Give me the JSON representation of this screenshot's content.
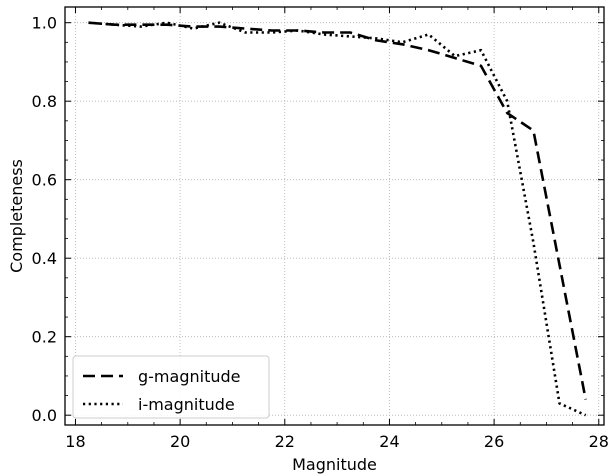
{
  "chart_data": {
    "type": "line",
    "title": "",
    "xlabel": "Magnitude",
    "ylabel": "Completeness",
    "xlim": [
      17.8,
      28.1
    ],
    "ylim": [
      -0.025,
      1.04
    ],
    "xticks": [
      18,
      20,
      22,
      24,
      26,
      28
    ],
    "yticks": [
      0.0,
      0.2,
      0.4,
      0.6,
      0.8,
      1.0
    ],
    "xtick_labels": [
      "18",
      "20",
      "22",
      "24",
      "26",
      "28"
    ],
    "ytick_labels": [
      "0.0",
      "0.2",
      "0.4",
      "0.6",
      "0.8",
      "1.0"
    ],
    "grid": true,
    "legend_position": "lower-left",
    "series": [
      {
        "name": "g-magnitude",
        "style": "dashed",
        "color": "#000000",
        "x": [
          18.25,
          18.75,
          19.25,
          19.75,
          20.25,
          20.75,
          21.25,
          21.75,
          22.25,
          22.75,
          23.25,
          23.75,
          24.25,
          24.75,
          25.25,
          25.75,
          26.25,
          26.75,
          27.75
        ],
        "y": [
          1.0,
          0.995,
          0.995,
          0.995,
          0.99,
          0.99,
          0.985,
          0.98,
          0.98,
          0.975,
          0.975,
          0.955,
          0.945,
          0.93,
          0.91,
          0.89,
          0.77,
          0.725,
          0.04
        ]
      },
      {
        "name": "i-magnitude",
        "style": "dotted",
        "color": "#000000",
        "x": [
          18.25,
          18.75,
          19.25,
          19.75,
          20.25,
          20.75,
          21.25,
          21.75,
          22.25,
          22.75,
          23.25,
          23.75,
          24.25,
          24.75,
          25.25,
          25.75,
          26.25,
          26.75,
          27.25,
          27.75
        ],
        "y": [
          1.0,
          0.995,
          0.99,
          1.0,
          0.985,
          1.0,
          0.975,
          0.975,
          0.98,
          0.97,
          0.965,
          0.96,
          0.95,
          0.97,
          0.915,
          0.93,
          0.8,
          0.44,
          0.03,
          0.0
        ]
      }
    ]
  }
}
